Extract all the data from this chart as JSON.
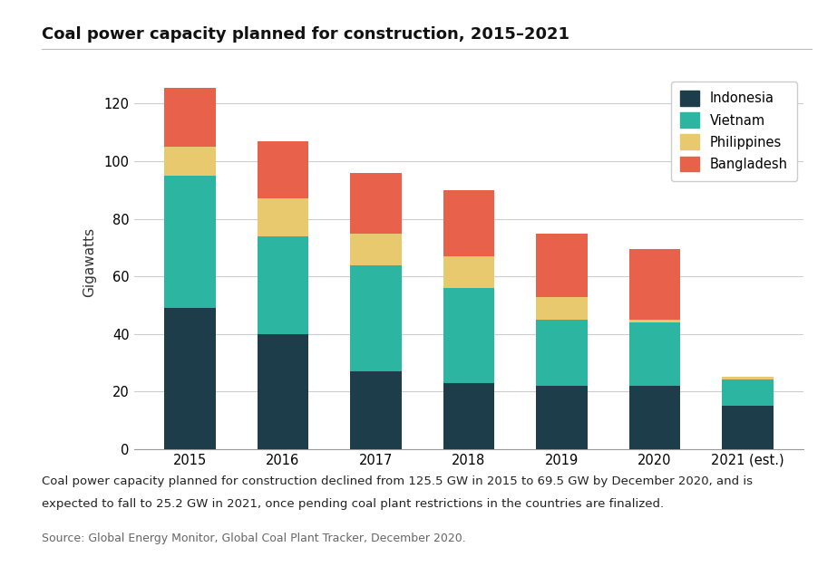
{
  "title": "Coal power capacity planned for construction, 2015–2021",
  "ylabel": "Gigawatts",
  "categories": [
    "2015",
    "2016",
    "2017",
    "2018",
    "2019",
    "2020",
    "2021 (est.)"
  ],
  "indonesia": [
    49.0,
    40.0,
    27.0,
    23.0,
    22.0,
    22.0,
    15.0
  ],
  "vietnam": [
    46.0,
    34.0,
    37.0,
    33.0,
    23.0,
    22.0,
    9.2
  ],
  "philippines": [
    10.0,
    13.0,
    11.0,
    11.0,
    8.0,
    1.0,
    1.0
  ],
  "bangladesh": [
    20.5,
    20.0,
    21.0,
    23.0,
    22.0,
    24.5,
    0.0
  ],
  "colors": {
    "indonesia": "#1d3d4a",
    "vietnam": "#2cb5a0",
    "philippines": "#e8c96e",
    "bangladesh": "#e8614a"
  },
  "ylim": [
    0,
    130
  ],
  "yticks": [
    0,
    20,
    40,
    60,
    80,
    100,
    120
  ],
  "caption_line1": "Coal power capacity planned for construction declined from 125.5 GW in 2015 to 69.5 GW by December 2020, and is",
  "caption_line2": "expected to fall to 25.2 GW in 2021, once pending coal plant restrictions in the countries are finalized.",
  "source": "Source: Global Energy Monitor, Global Coal Plant Tracker, December 2020.",
  "bg_color": "#ffffff",
  "plot_bg_color": "#ffffff",
  "bar_width": 0.55
}
